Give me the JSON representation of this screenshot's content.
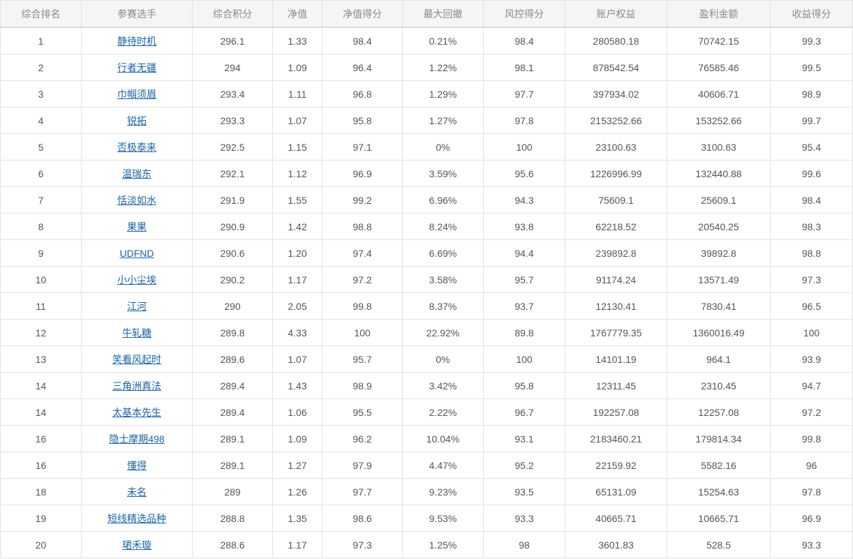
{
  "table": {
    "headers": [
      "综合排名",
      "参赛选手",
      "综合积分",
      "净值",
      "净值得分",
      "最大回撤",
      "风控得分",
      "账户权益",
      "盈利金额",
      "收益得分"
    ],
    "rows": [
      [
        "1",
        "静待时机",
        "296.1",
        "1.33",
        "98.4",
        "0.21%",
        "98.4",
        "280580.18",
        "70742.15",
        "99.3"
      ],
      [
        "2",
        "行者无疆",
        "294",
        "1.09",
        "96.4",
        "1.22%",
        "98.1",
        "878542.54",
        "76585.46",
        "99.5"
      ],
      [
        "3",
        "巾帼须眉",
        "293.4",
        "1.11",
        "96.8",
        "1.29%",
        "97.7",
        "397934.02",
        "40606.71",
        "98.9"
      ],
      [
        "4",
        "锐拓",
        "293.3",
        "1.07",
        "95.8",
        "1.27%",
        "97.8",
        "2153252.66",
        "153252.66",
        "99.7"
      ],
      [
        "5",
        "否极泰来",
        "292.5",
        "1.15",
        "97.1",
        "0%",
        "100",
        "23100.63",
        "3100.63",
        "95.4"
      ],
      [
        "6",
        "温瑞东",
        "292.1",
        "1.12",
        "96.9",
        "3.59%",
        "95.6",
        "1226996.99",
        "132440.88",
        "99.6"
      ],
      [
        "7",
        "恬淡如水",
        "291.9",
        "1.55",
        "99.2",
        "6.96%",
        "94.3",
        "75609.1",
        "25609.1",
        "98.4"
      ],
      [
        "8",
        "果果",
        "290.9",
        "1.42",
        "98.8",
        "8.24%",
        "93.8",
        "62218.52",
        "20540.25",
        "98.3"
      ],
      [
        "9",
        "UDFND",
        "290.6",
        "1.20",
        "97.4",
        "6.69%",
        "94.4",
        "239892.8",
        "39892.8",
        "98.8"
      ],
      [
        "10",
        "小小尘埃",
        "290.2",
        "1.17",
        "97.2",
        "3.58%",
        "95.7",
        "91174.24",
        "13571.49",
        "97.3"
      ],
      [
        "11",
        "江河",
        "290",
        "2.05",
        "99.8",
        "8.37%",
        "93.7",
        "12130.41",
        "7830.41",
        "96.5"
      ],
      [
        "12",
        "牛轧糖",
        "289.8",
        "4.33",
        "100",
        "22.92%",
        "89.8",
        "1767779.35",
        "1360016.49",
        "100"
      ],
      [
        "13",
        "笑看风起时",
        "289.6",
        "1.07",
        "95.7",
        "0%",
        "100",
        "14101.19",
        "964.1",
        "93.9"
      ],
      [
        "14",
        "三角洲真法",
        "289.4",
        "1.43",
        "98.9",
        "3.42%",
        "95.8",
        "12311.45",
        "2310.45",
        "94.7"
      ],
      [
        "14",
        "太基本先生",
        "289.4",
        "1.06",
        "95.5",
        "2.22%",
        "96.7",
        "192257.08",
        "12257.08",
        "97.2"
      ],
      [
        "16",
        "隐士摩期498",
        "289.1",
        "1.09",
        "96.2",
        "10.04%",
        "93.1",
        "2183460.21",
        "179814.34",
        "99.8"
      ],
      [
        "16",
        "懂得",
        "289.1",
        "1.27",
        "97.9",
        "4.47%",
        "95.2",
        "22159.92",
        "5582.16",
        "96"
      ],
      [
        "18",
        "未名",
        "289",
        "1.26",
        "97.7",
        "9.23%",
        "93.5",
        "65131.09",
        "15254.63",
        "97.8"
      ],
      [
        "19",
        "短线精选品种",
        "288.8",
        "1.35",
        "98.6",
        "9.53%",
        "93.3",
        "40665.71",
        "10665.71",
        "96.9"
      ],
      [
        "20",
        "珺禾璇",
        "288.6",
        "1.17",
        "97.3",
        "1.25%",
        "98",
        "3601.83",
        "528.5",
        "93.3"
      ]
    ]
  },
  "colors": {
    "link": "#1a63a6",
    "header_background": "#f5f5f5",
    "border": "#e2e2e2",
    "header_text": "#8a8a8a",
    "cell_text": "#555555"
  }
}
